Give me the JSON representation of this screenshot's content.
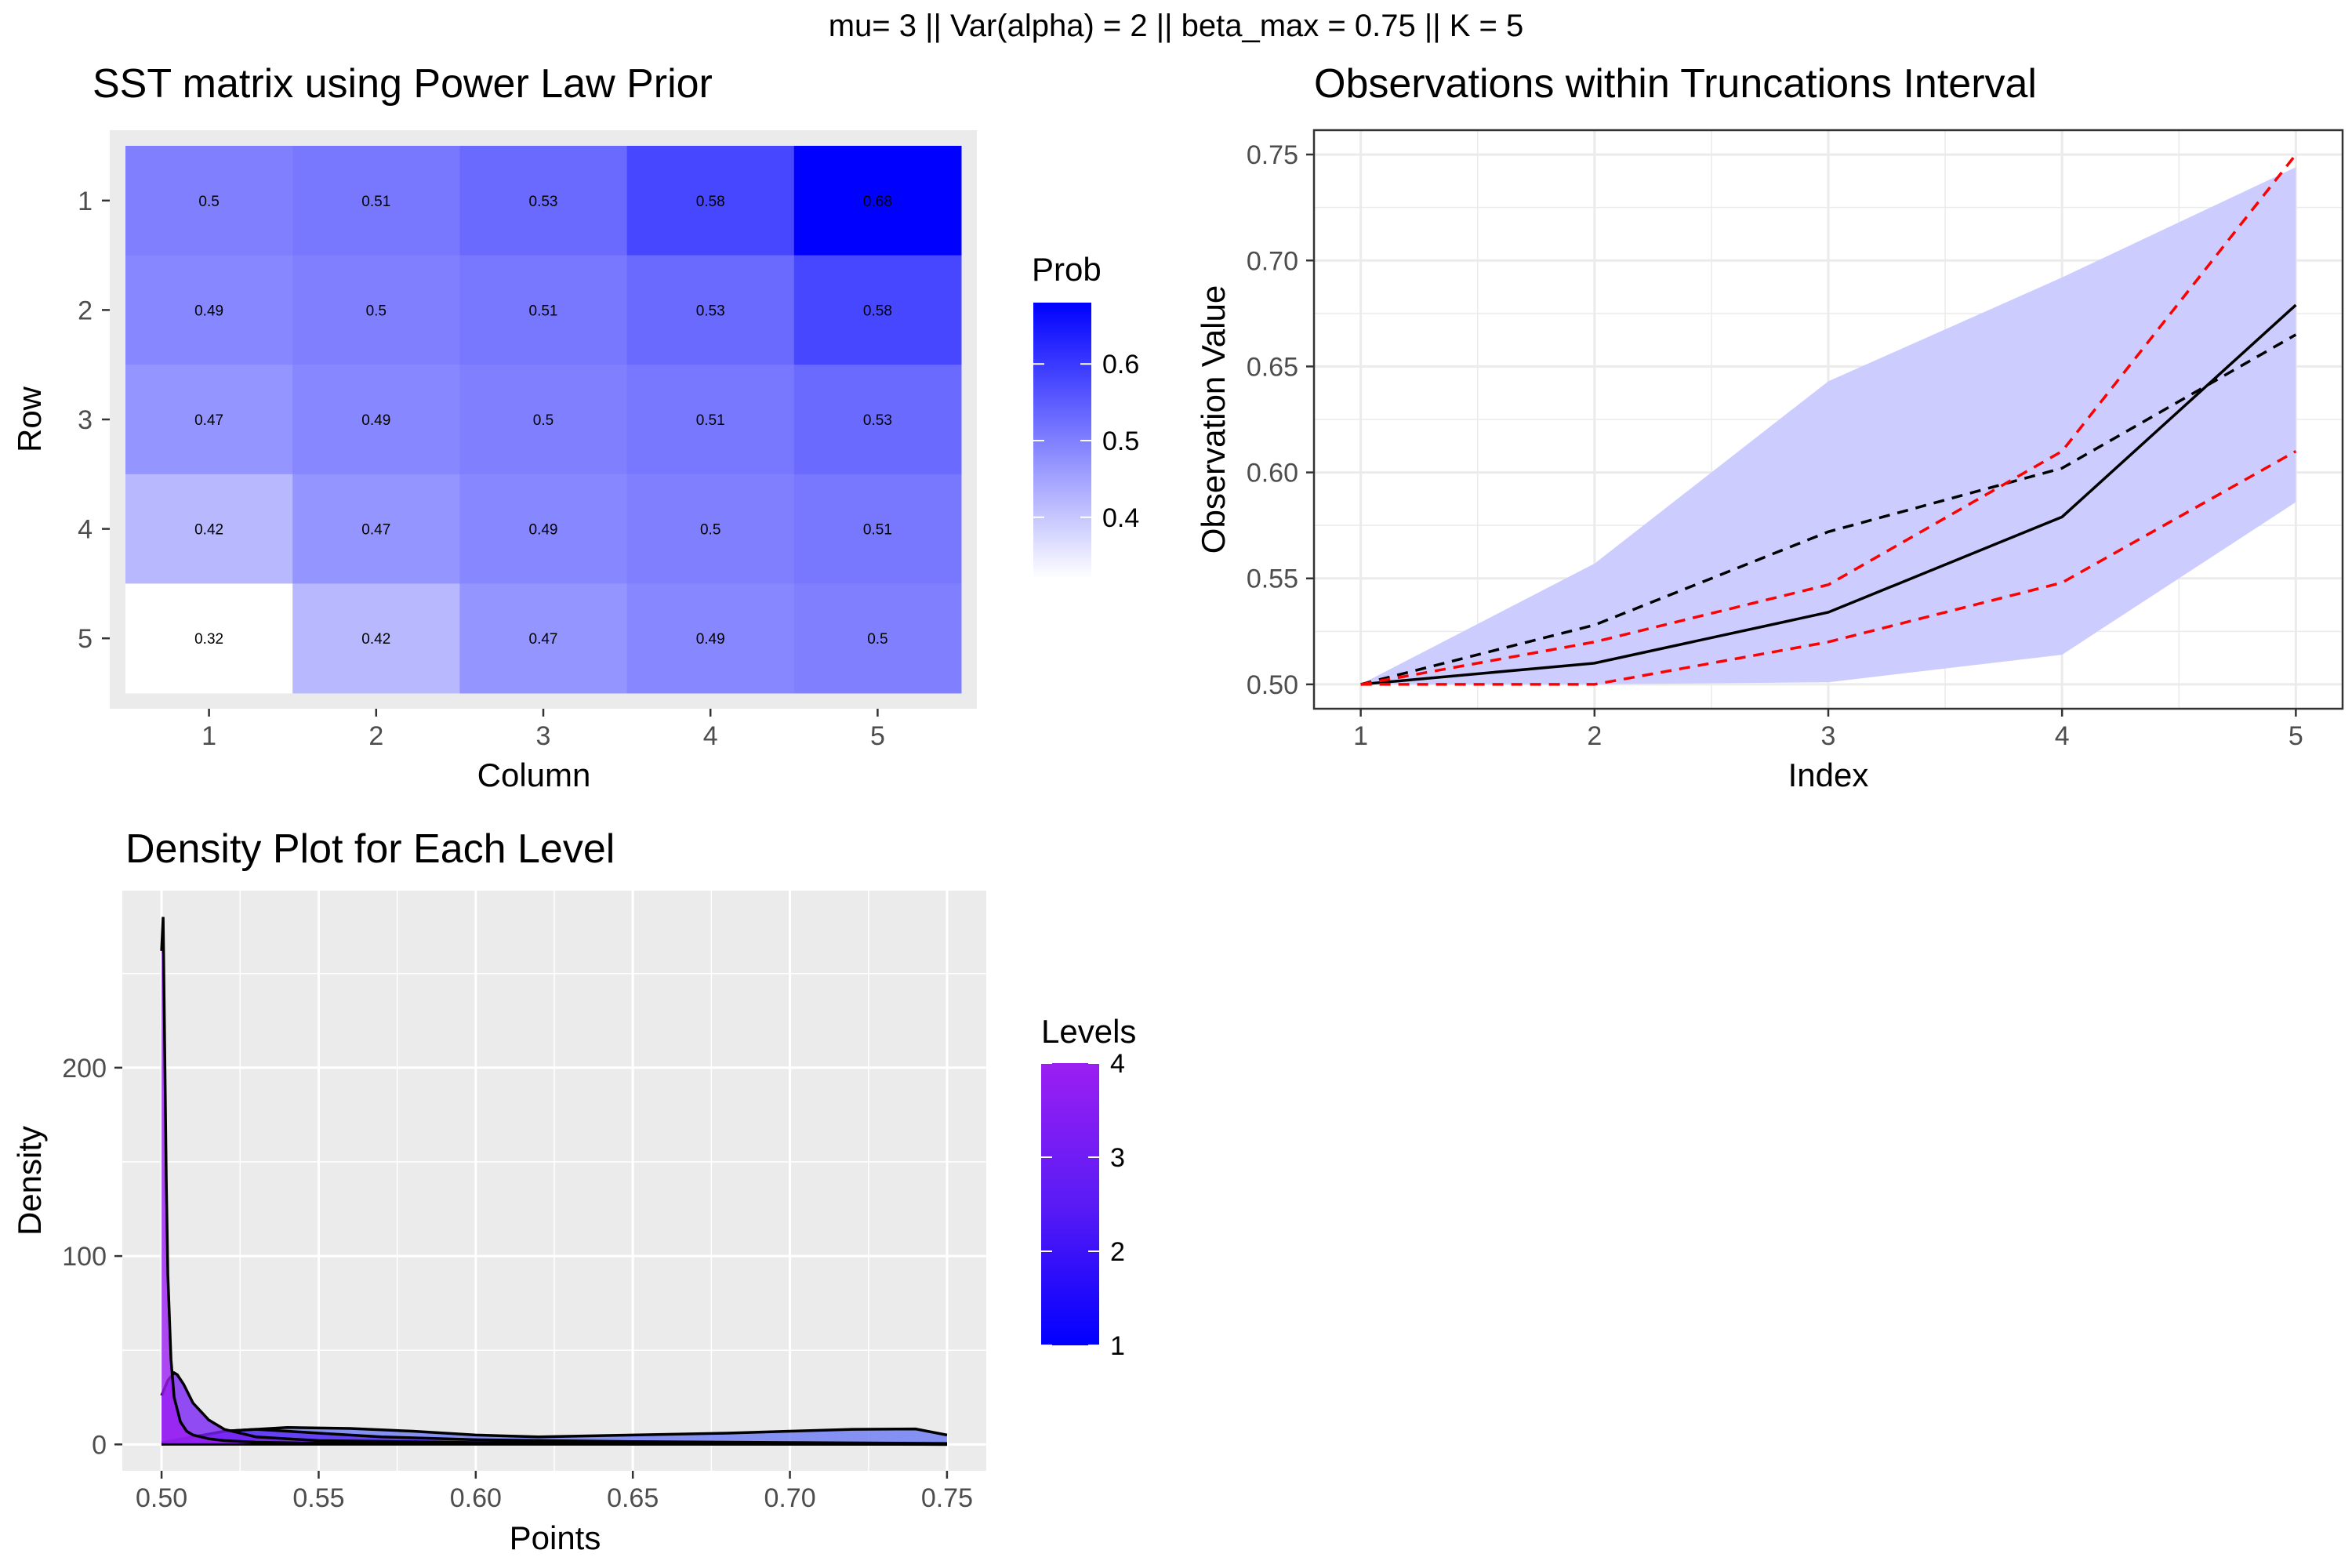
{
  "figure_title": "mu=  3 || Var(alpha) = 2 || beta_max = 0.75 || K = 5",
  "chart_data": [
    {
      "type": "heatmap",
      "title": "SST matrix using Power Law Prior",
      "xlabel": "Column",
      "ylabel": "Row",
      "rows": [
        "1",
        "2",
        "3",
        "4",
        "5"
      ],
      "columns": [
        "1",
        "2",
        "3",
        "4",
        "5"
      ],
      "values": [
        [
          0.5,
          0.51,
          0.53,
          0.58,
          0.68
        ],
        [
          0.49,
          0.5,
          0.51,
          0.53,
          0.58
        ],
        [
          0.47,
          0.49,
          0.5,
          0.51,
          0.53
        ],
        [
          0.42,
          0.47,
          0.49,
          0.5,
          0.51
        ],
        [
          0.32,
          0.42,
          0.47,
          0.49,
          0.5
        ]
      ],
      "cell_labels": [
        [
          "0.5",
          "0.51",
          "0.53",
          "0.58",
          "0.68"
        ],
        [
          "0.49",
          "0.5",
          "0.51",
          "0.53",
          "0.58"
        ],
        [
          "0.47",
          "0.49",
          "0.5",
          "0.51",
          "0.53"
        ],
        [
          "0.42",
          "0.47",
          "0.49",
          "0.5",
          "0.51"
        ],
        [
          "0.32",
          "0.42",
          "0.47",
          "0.49",
          "0.5"
        ]
      ],
      "legend": {
        "title": "Prob",
        "ticks": [
          "0.4",
          "0.5",
          "0.6"
        ],
        "tick_values": [
          0.4,
          0.5,
          0.6
        ],
        "range": [
          0.32,
          0.68
        ],
        "low_color": "#ffffff",
        "high_color": "#0000ff"
      },
      "panel_bg": "#ebebeb"
    },
    {
      "type": "line",
      "title": "Observations within Truncations Interval",
      "xlabel": "Index",
      "ylabel": "Observation Value",
      "x": [
        1,
        2,
        3,
        4,
        5
      ],
      "x_ticks": [
        "1",
        "2",
        "3",
        "4",
        "5"
      ],
      "y_ticks": [
        "0.50",
        "0.55",
        "0.60",
        "0.65",
        "0.70",
        "0.75"
      ],
      "y_tick_values": [
        0.5,
        0.55,
        0.6,
        0.65,
        0.7,
        0.75
      ],
      "xlim": [
        0.8,
        5.2
      ],
      "ylim": [
        0.4885,
        0.7615
      ],
      "band": {
        "lower": [
          0.5,
          0.5,
          0.501,
          0.514,
          0.586
        ],
        "upper": [
          0.5,
          0.557,
          0.643,
          0.692,
          0.744
        ],
        "color": "#ccccff"
      },
      "series": [
        {
          "values": [
            0.5,
            0.51,
            0.534,
            0.579,
            0.679
          ],
          "color": "#000000",
          "dash": "solid"
        },
        {
          "values": [
            0.5,
            0.528,
            0.572,
            0.602,
            0.665
          ],
          "color": "#000000",
          "dash": "dashed"
        },
        {
          "values": [
            0.5,
            0.52,
            0.547,
            0.61,
            0.75
          ],
          "color": "#ff0000",
          "dash": "dashed"
        },
        {
          "values": [
            0.5,
            0.5,
            0.52,
            0.548,
            0.61
          ],
          "color": "#ff0000",
          "dash": "dashed"
        }
      ],
      "panel_bg": "#ffffff",
      "grid_color": "#ebebeb"
    },
    {
      "type": "area",
      "title": "Density Plot for Each Level",
      "xlabel": "Points",
      "ylabel": "Density",
      "x_ticks": [
        "0.50",
        "0.55",
        "0.60",
        "0.65",
        "0.70",
        "0.75"
      ],
      "x_tick_values": [
        0.5,
        0.55,
        0.6,
        0.65,
        0.7,
        0.75
      ],
      "y_ticks": [
        "0",
        "100",
        "200"
      ],
      "y_tick_values": [
        0,
        100,
        200
      ],
      "xlim": [
        0.4875,
        0.7625
      ],
      "ylim": [
        -14,
        294
      ],
      "series": [
        {
          "name": "4",
          "color": "#9b1ff2",
          "x": [
            0.5,
            0.5005,
            0.501,
            0.5015,
            0.502,
            0.503,
            0.504,
            0.506,
            0.508,
            0.51,
            0.515,
            0.52,
            0.53,
            0.55,
            0.6,
            0.65,
            0.7,
            0.75
          ],
          "y": [
            262,
            280,
            210,
            140,
            90,
            45,
            25,
            12,
            7,
            5,
            3,
            2,
            1.2,
            0.6,
            0.3,
            0.15,
            0.1,
            0
          ]
        },
        {
          "name": "3",
          "color": "#7a23f5",
          "x": [
            0.5,
            0.502,
            0.504,
            0.505,
            0.507,
            0.51,
            0.515,
            0.52,
            0.53,
            0.55,
            0.6,
            0.65,
            0.7,
            0.75
          ],
          "y": [
            26,
            34,
            38,
            37,
            32,
            22,
            13,
            8,
            4,
            2,
            1,
            0.5,
            0.3,
            0
          ]
        },
        {
          "name": "2",
          "color": "#5c30f7",
          "x": [
            0.5,
            0.51,
            0.52,
            0.53,
            0.54,
            0.55,
            0.57,
            0.6,
            0.65,
            0.7,
            0.75
          ],
          "y": [
            1,
            4,
            7,
            8,
            7,
            6,
            4,
            2.5,
            1.5,
            1,
            0.5
          ]
        },
        {
          "name": "1",
          "color": "#6a7af5",
          "x": [
            0.5,
            0.52,
            0.54,
            0.56,
            0.58,
            0.6,
            0.62,
            0.65,
            0.68,
            0.7,
            0.72,
            0.74,
            0.75
          ],
          "y": [
            0,
            7,
            9,
            8.5,
            7,
            5,
            4,
            5,
            6,
            7,
            8,
            8.2,
            5
          ]
        }
      ],
      "legend": {
        "title": "Levels",
        "ticks": [
          "1",
          "2",
          "3",
          "4"
        ],
        "tick_values": [
          1,
          2,
          3,
          4
        ],
        "low_color": "#0000ff",
        "high_color": "#9b1ff2"
      },
      "panel_bg": "#ebebeb"
    }
  ]
}
